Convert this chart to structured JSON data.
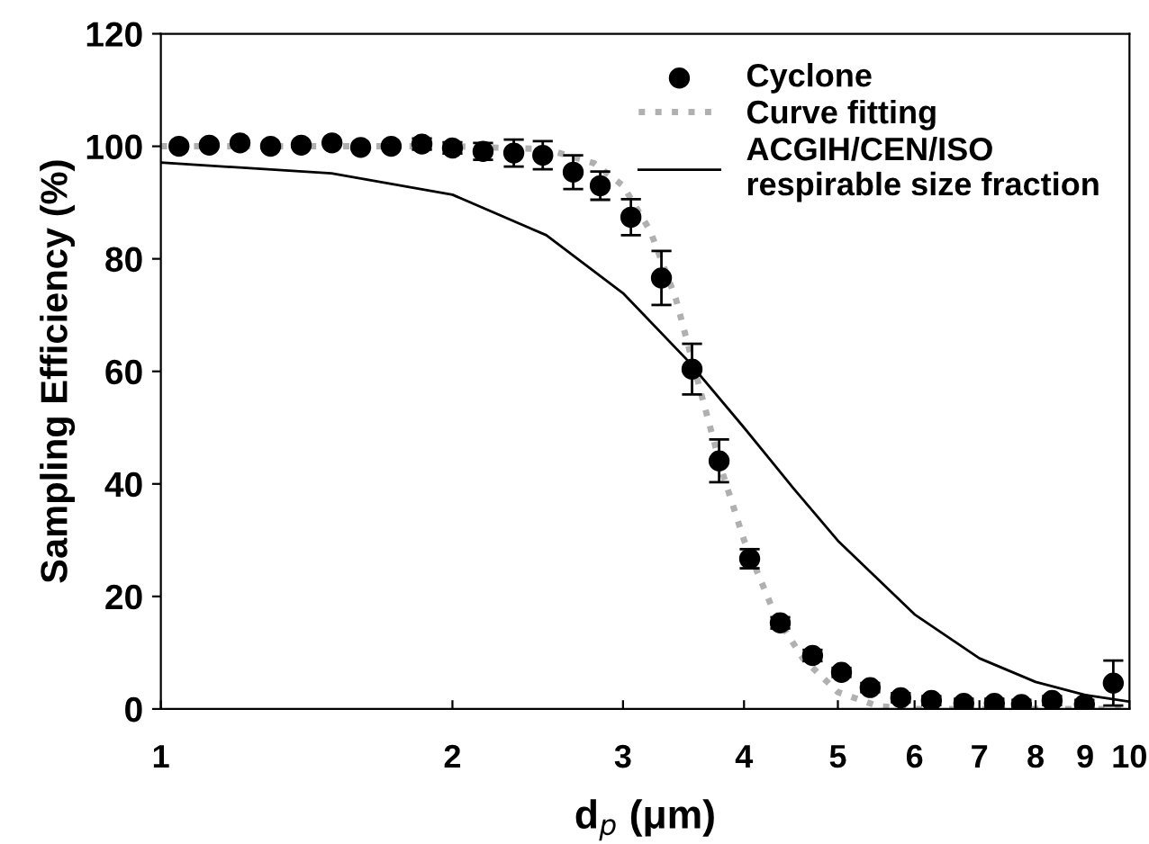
{
  "chart_data": {
    "type": "scatter",
    "xlabel": "d$_{p}$ (μm)",
    "ylabel": "Sampling Efficiency (%)",
    "log": "x",
    "xlim": [
      1,
      10
    ],
    "xticks": [
      1,
      2,
      3,
      4,
      5,
      6,
      7,
      8,
      9,
      10
    ],
    "ylim": [
      0,
      120
    ],
    "yticks": [
      0,
      20,
      40,
      60,
      80,
      100,
      120
    ],
    "grid": false,
    "legend": "top right",
    "series": [
      {
        "name": "Cyclone",
        "marker": "circle",
        "color": "#000000",
        "x": [
          1.044,
          1.122,
          1.207,
          1.298,
          1.396,
          1.502,
          1.608,
          1.729,
          1.86,
          2.0,
          2.151,
          2.314,
          2.479,
          2.665,
          2.842,
          3.057,
          3.287,
          3.535,
          3.77,
          4.054,
          4.36,
          4.708,
          5.043,
          5.399,
          5.806,
          6.245,
          6.745,
          7.254,
          7.736,
          8.32,
          8.985,
          9.623
        ],
        "values": [
          100,
          100.2,
          100.6,
          100,
          100.2,
          100.6,
          99.8,
          100,
          100.4,
          99.7,
          99.1,
          98.8,
          98.4,
          95.4,
          93,
          87.4,
          76.6,
          60.4,
          44.1,
          26.7,
          15.3,
          9.5,
          6.5,
          3.8,
          2.0,
          1.5,
          1.0,
          1.0,
          0.8,
          1.5,
          0.8,
          4.6
        ],
        "errors": [
          null,
          null,
          null,
          null,
          null,
          null,
          null,
          null,
          1,
          1,
          1.5,
          2.4,
          2.5,
          3,
          2.5,
          3.2,
          4.8,
          4.5,
          3.8,
          1.7,
          1,
          1,
          0.8,
          0.8,
          0.8,
          0.8,
          0.8,
          0.8,
          0.8,
          0.8,
          0.8,
          4
        ]
      },
      {
        "name": "Curve fitting",
        "type": "line",
        "line_style": "dotted",
        "color": "#b0b0b0",
        "x": [
          1,
          2,
          2.5,
          2.8,
          3.0,
          3.2,
          3.4,
          3.6,
          3.8,
          4.0,
          4.3,
          4.6,
          5.0,
          5.5,
          6,
          10
        ],
        "values": [
          100,
          100,
          99.5,
          97,
          93,
          85,
          73,
          57,
          42,
          30,
          17,
          9,
          3,
          0.5,
          0,
          0
        ]
      },
      {
        "name": "ACGIH/CEN/ISO\nrespirable size fraction",
        "type": "line",
        "line_style": "solid",
        "color": "#000000",
        "x": [
          1,
          1.5,
          2,
          2.5,
          3,
          3.5,
          4,
          4.5,
          5,
          6,
          7,
          8,
          9,
          10
        ],
        "values": [
          97.1,
          95.2,
          91.4,
          84.2,
          73.9,
          61.9,
          50.0,
          39.2,
          29.9,
          16.8,
          9.0,
          4.8,
          2.5,
          1.3
        ]
      }
    ]
  }
}
